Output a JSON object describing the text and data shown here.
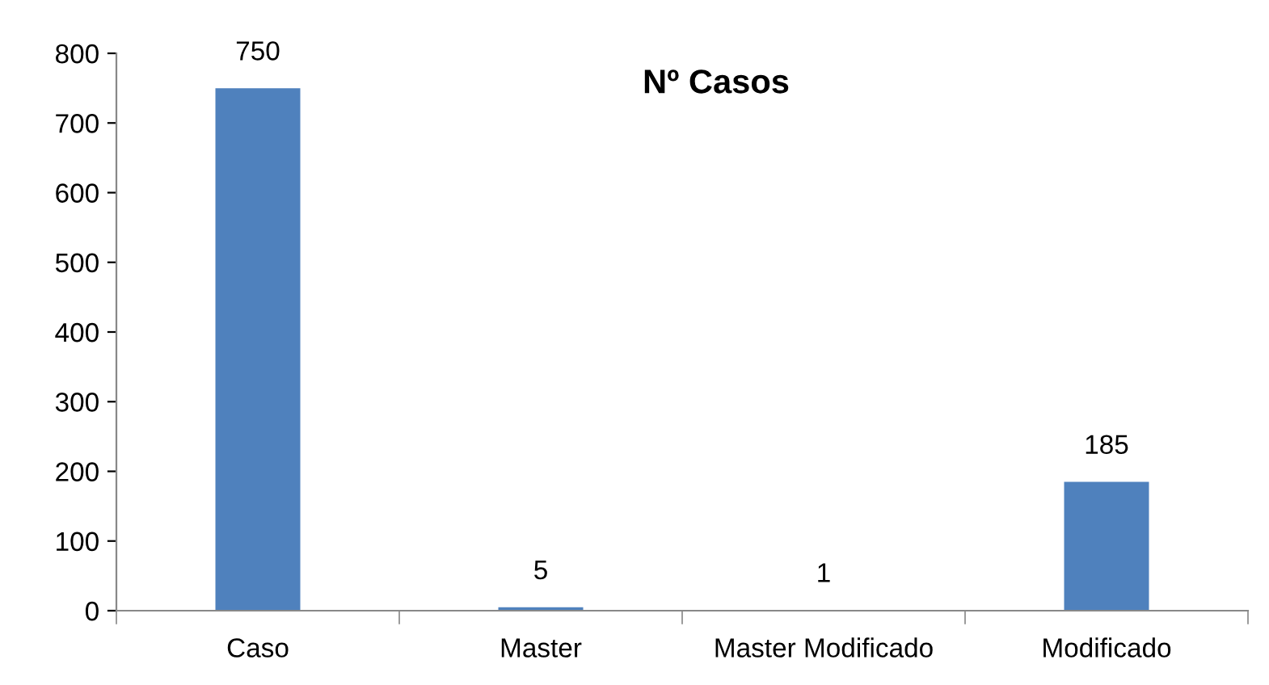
{
  "chart_data": {
    "type": "bar",
    "title": "Nº Casos",
    "categories": [
      "Caso",
      "Master",
      "Master Modificado",
      "Modificado"
    ],
    "values": [
      750,
      5,
      1,
      185
    ],
    "color": "#4f81bd",
    "ylim": [
      0,
      800
    ],
    "yticks": [
      0,
      100,
      200,
      300,
      400,
      500,
      600,
      700,
      800
    ],
    "data_labels": true,
    "grid": false
  }
}
